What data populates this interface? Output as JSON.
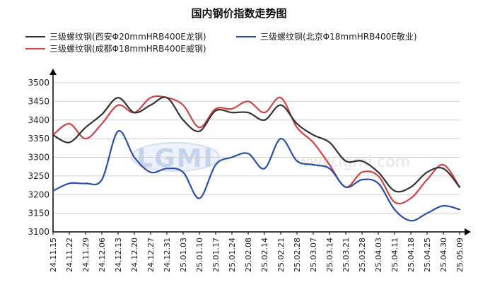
{
  "chart_data": {
    "type": "line",
    "title": "国内钢价指数走势图",
    "categories": [
      "24.11.15",
      "24.11.22",
      "24.11.29",
      "24.12.06",
      "24.12.13",
      "24.12.20",
      "24.12.27",
      "24.12.31",
      "25.01.03",
      "25.01.10",
      "25.01.17",
      "25.01.24",
      "25.02.08",
      "25.02.14",
      "25.02.21",
      "25.02.28",
      "25.03.07",
      "25.03.14",
      "25.03.21",
      "25.03.28",
      "25.04.03",
      "25.04.11",
      "25.04.18",
      "25.04.25",
      "25.04.30",
      "25.05.09"
    ],
    "ylim": [
      3100,
      3500
    ],
    "yticks": [
      3100,
      3150,
      3200,
      3250,
      3300,
      3350,
      3400,
      3450,
      3500
    ],
    "series": [
      {
        "name": "三级螺纹钢(西安Φ20mmHRB400E龙钢)",
        "color": "#333333",
        "values": [
          3360,
          3340,
          3380,
          3415,
          3460,
          3420,
          3440,
          3460,
          3400,
          3370,
          3425,
          3420,
          3420,
          3400,
          3440,
          3390,
          3360,
          3340,
          3290,
          3290,
          3260,
          3210,
          3220,
          3260,
          3270,
          3220
        ]
      },
      {
        "name": "三级螺纹钢(北京Φ18mmHRB400E敬业)",
        "color": "#2a4fa8",
        "values": [
          3210,
          3230,
          3230,
          3240,
          3370,
          3300,
          3260,
          3270,
          3260,
          3190,
          3280,
          3300,
          3310,
          3270,
          3350,
          3290,
          3280,
          3270,
          3220,
          3240,
          3230,
          3160,
          3130,
          3150,
          3170,
          3160
        ]
      },
      {
        "name": "三级螺纹钢(成都Φ18mmHRB400E威钢)",
        "color": "#cc4444",
        "values": [
          3360,
          3390,
          3350,
          3390,
          3440,
          3420,
          3460,
          3460,
          3440,
          3380,
          3430,
          3430,
          3450,
          3420,
          3460,
          3380,
          3340,
          3280,
          3220,
          3260,
          3250,
          3180,
          3190,
          3240,
          3280,
          3220
        ]
      }
    ],
    "grid": "horizontal",
    "legend": "top-left"
  },
  "watermark": {
    "logo": "LGMI",
    "url": "www.lgmi.com"
  }
}
